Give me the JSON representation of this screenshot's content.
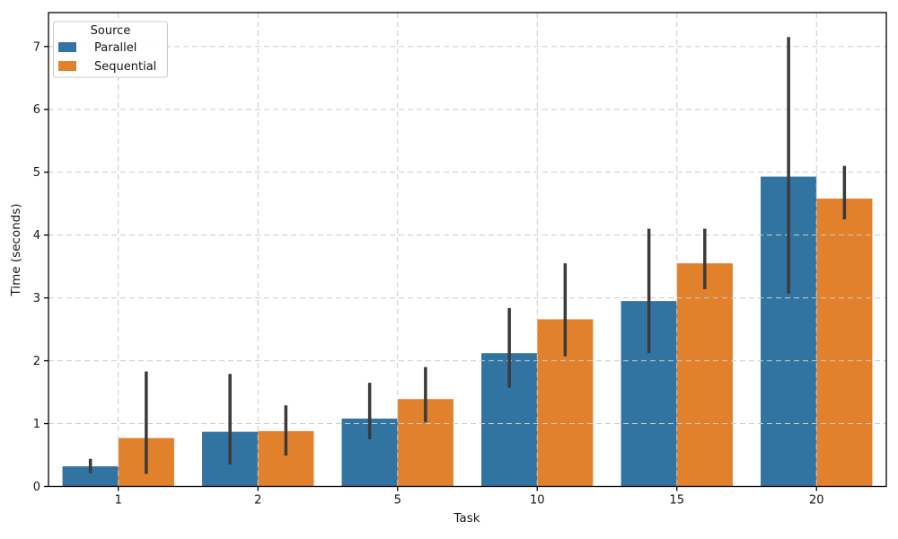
{
  "chart_data": {
    "type": "bar",
    "title": "",
    "xlabel": "Task",
    "ylabel": "Time (seconds)",
    "categories": [
      "1",
      "2",
      "5",
      "10",
      "15",
      "20"
    ],
    "series": [
      {
        "name": "Parallel",
        "color": "#3274a1",
        "values": [
          0.32,
          0.87,
          1.08,
          2.12,
          2.95,
          4.93
        ],
        "ci_low": [
          0.21,
          0.35,
          0.75,
          1.57,
          2.12,
          3.07
        ],
        "ci_high": [
          0.44,
          1.79,
          1.65,
          2.84,
          4.1,
          7.15
        ]
      },
      {
        "name": "Sequential",
        "color": "#e1812c",
        "values": [
          0.77,
          0.88,
          1.39,
          2.66,
          3.55,
          4.58
        ],
        "ci_low": [
          0.2,
          0.49,
          1.02,
          2.07,
          3.14,
          4.25
        ],
        "ci_high": [
          1.83,
          1.29,
          1.9,
          3.55,
          4.1,
          5.1
        ]
      }
    ],
    "legend": {
      "title": "Source",
      "position": "upper-left"
    },
    "ylim": [
      0,
      7.54
    ],
    "yticks": [
      0,
      1,
      2,
      3,
      4,
      5,
      6,
      7
    ],
    "grid": true,
    "grid_style": "dashed",
    "grid_color": "#cccccc",
    "error_bar_color": "#3a3a3a",
    "spine_color": "#000000",
    "bar_group_width_ratio": 0.8
  }
}
